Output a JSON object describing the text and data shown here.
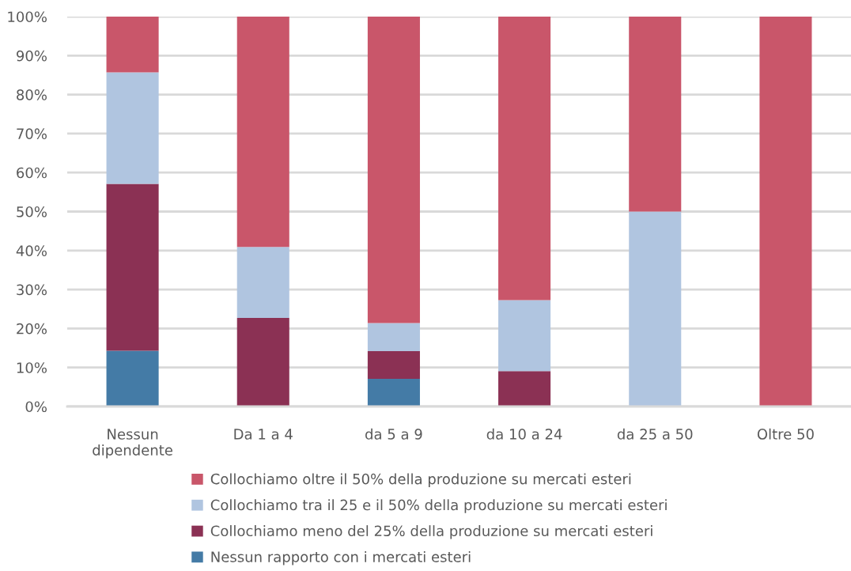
{
  "chart_data": {
    "type": "bar",
    "stacked": true,
    "categories": [
      "Nessun\ndipendente",
      "Da 1 a 4",
      "da 5 a 9",
      "da 10 a 24",
      "da 25 a 50",
      "Oltre 50"
    ],
    "series": [
      {
        "name": "Nessun rapporto con i mercati esteri",
        "color": "#447ba6",
        "values": [
          14.3,
          0,
          7.1,
          0,
          0,
          0
        ]
      },
      {
        "name": "Collochiamo meno del 25% della produzione su mercati esteri",
        "color": "#8b3154",
        "values": [
          42.8,
          22.7,
          7.1,
          9.1,
          0,
          0
        ]
      },
      {
        "name": "Collochiamo tra il 25 e il 50% della produzione su mercati esteri",
        "color": "#b0c5e0",
        "values": [
          28.6,
          18.2,
          7.2,
          18.2,
          50,
          0
        ]
      },
      {
        "name": "Collochiamo oltre il 50% della produzione su mercati esteri",
        "color": "#c9566a",
        "values": [
          14.3,
          59.1,
          78.6,
          72.7,
          50,
          100
        ]
      }
    ],
    "ylim": [
      0,
      100
    ],
    "yticks": [
      {
        "value": 0,
        "label": "0%"
      },
      {
        "value": 10,
        "label": "10%"
      },
      {
        "value": 20,
        "label": "20%"
      },
      {
        "value": 30,
        "label": "30%"
      },
      {
        "value": 40,
        "label": "40%"
      },
      {
        "value": 50,
        "label": "50%"
      },
      {
        "value": 60,
        "label": "60%"
      },
      {
        "value": 70,
        "label": "70%"
      },
      {
        "value": 80,
        "label": "80%"
      },
      {
        "value": 90,
        "label": "90%"
      },
      {
        "value": 100,
        "label": "100%"
      }
    ],
    "grid": "y",
    "legend": "bottom"
  }
}
